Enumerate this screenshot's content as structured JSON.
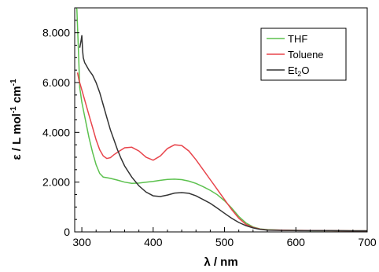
{
  "chart_data": {
    "type": "line",
    "xlabel": "λ / nm",
    "ylabel_main": "ε / L mol",
    "ylabel_sup1": "-1",
    "ylabel_mid": " cm",
    "ylabel_sup2": "-1",
    "xlim": [
      290,
      700
    ],
    "ylim": [
      0,
      9000
    ],
    "x_ticks": [
      300,
      400,
      500,
      600,
      700
    ],
    "x_tick_labels": [
      "300",
      "400",
      "500",
      "600",
      "700"
    ],
    "y_ticks": [
      0,
      2000,
      4000,
      6000,
      8000
    ],
    "y_tick_labels": [
      "0",
      "2.000",
      "4.000",
      "6.000",
      "8.000"
    ],
    "grid": false,
    "legend_position": "top-right",
    "series": [
      {
        "name": "THF",
        "legend_label": "THF",
        "color": "#5cc14e",
        "x": [
          293,
          295,
          297,
          300,
          305,
          310,
          315,
          320,
          325,
          330,
          335,
          340,
          350,
          360,
          370,
          380,
          390,
          400,
          410,
          420,
          430,
          440,
          450,
          460,
          470,
          480,
          490,
          500,
          510,
          520,
          530,
          540,
          550,
          560,
          580,
          600,
          620,
          650,
          680,
          700
        ],
        "y": [
          9000,
          7500,
          5800,
          5200,
          4500,
          3800,
          3200,
          2700,
          2350,
          2200,
          2180,
          2150,
          2080,
          2000,
          1950,
          1960,
          2000,
          2030,
          2070,
          2110,
          2120,
          2100,
          2040,
          1950,
          1820,
          1670,
          1490,
          1250,
          960,
          620,
          360,
          200,
          120,
          90,
          70,
          60,
          50,
          50,
          45,
          45
        ]
      },
      {
        "name": "Toluene",
        "legend_label": "Toluene",
        "color": "#e8454c",
        "x": [
          294,
          296,
          298,
          300,
          305,
          310,
          315,
          320,
          325,
          330,
          335,
          340,
          345,
          350,
          360,
          370,
          380,
          390,
          400,
          410,
          420,
          430,
          440,
          450,
          460,
          470,
          480,
          490,
          500,
          510,
          520,
          530,
          540,
          550,
          560,
          580,
          600,
          620,
          650,
          680,
          700
        ],
        "y": [
          6400,
          6100,
          5900,
          5700,
          5200,
          4700,
          4200,
          3700,
          3300,
          3050,
          2950,
          2980,
          3100,
          3200,
          3380,
          3400,
          3250,
          3000,
          2880,
          3050,
          3350,
          3500,
          3470,
          3250,
          2900,
          2500,
          2100,
          1700,
          1300,
          900,
          550,
          300,
          180,
          110,
          80,
          70,
          60,
          55,
          50,
          45,
          45
        ]
      },
      {
        "name": "Et2O",
        "legend_label_prefix": "Et",
        "legend_label_sub": "2",
        "legend_label_suffix": "O",
        "color": "#333333",
        "x": [
          297,
          299,
          300,
          301,
          302,
          304,
          306,
          310,
          315,
          320,
          325,
          330,
          335,
          340,
          345,
          350,
          355,
          360,
          370,
          380,
          390,
          400,
          410,
          420,
          430,
          440,
          450,
          460,
          470,
          480,
          490,
          500,
          510,
          520,
          530,
          540,
          550,
          560,
          580,
          600,
          620,
          650,
          680,
          700
        ],
        "y": [
          7400,
          7700,
          7900,
          7300,
          7000,
          6800,
          6700,
          6500,
          6300,
          6000,
          5600,
          5100,
          4600,
          4100,
          3700,
          3300,
          2950,
          2650,
          2200,
          1850,
          1600,
          1450,
          1420,
          1480,
          1560,
          1580,
          1550,
          1450,
          1300,
          1150,
          950,
          750,
          550,
          380,
          250,
          160,
          100,
          70,
          60,
          55,
          50,
          50,
          45,
          45
        ]
      }
    ]
  }
}
